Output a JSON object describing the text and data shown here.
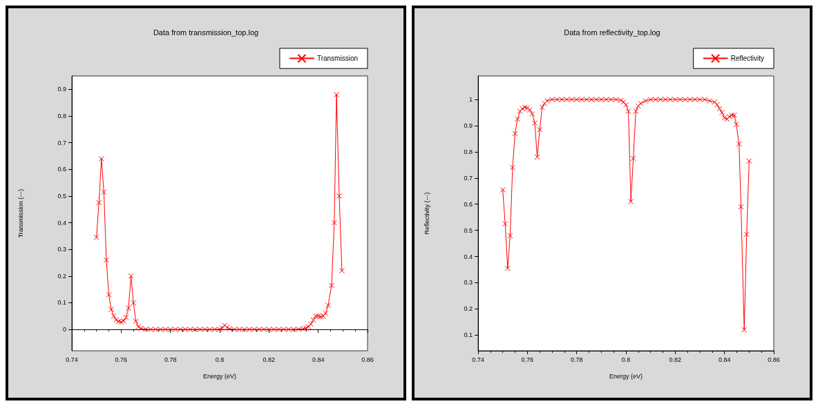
{
  "chart_data": [
    {
      "type": "line",
      "title": "Data from transmission_top.log",
      "xlabel": "Energy (eV)",
      "ylabel": "Transmission (---)",
      "xlim": [
        0.74,
        0.86
      ],
      "xticks": [
        0.74,
        0.76,
        0.78,
        0.8,
        0.82,
        0.84,
        0.86
      ],
      "ylim": [
        -0.08,
        0.95
      ],
      "yticks": [
        0,
        0.1,
        0.2,
        0.3,
        0.4,
        0.5,
        0.6,
        0.7,
        0.8,
        0.9
      ],
      "legend": "top right",
      "marker": "cross",
      "line_style": "solid",
      "x": [
        0.75,
        0.751,
        0.752,
        0.753,
        0.754,
        0.755,
        0.756,
        0.757,
        0.758,
        0.759,
        0.76,
        0.761,
        0.762,
        0.763,
        0.764,
        0.765,
        0.766,
        0.767,
        0.768,
        0.77,
        0.772,
        0.774,
        0.776,
        0.778,
        0.78,
        0.782,
        0.784,
        0.786,
        0.788,
        0.79,
        0.792,
        0.794,
        0.796,
        0.798,
        0.8,
        0.801,
        0.802,
        0.803,
        0.804,
        0.806,
        0.808,
        0.81,
        0.812,
        0.814,
        0.816,
        0.818,
        0.82,
        0.822,
        0.824,
        0.826,
        0.828,
        0.83,
        0.832,
        0.834,
        0.835,
        0.836,
        0.837,
        0.838,
        0.839,
        0.84,
        0.841,
        0.842,
        0.843,
        0.844,
        0.8454,
        0.8465,
        0.8474,
        0.8485,
        0.8496
      ],
      "series": [
        {
          "name": "Transmission",
          "color": "#ff0000",
          "values": [
            0.345,
            0.475,
            0.64,
            0.515,
            0.26,
            0.13,
            0.075,
            0.05,
            0.035,
            0.03,
            0.028,
            0.032,
            0.045,
            0.08,
            0.2,
            0.1,
            0.03,
            0.01,
            0.004,
            0.001,
            0,
            0,
            0,
            0,
            0,
            0,
            0,
            0,
            0,
            0,
            0,
            0,
            0,
            0,
            0.001,
            0.005,
            0.015,
            0.007,
            0.002,
            0,
            0,
            0,
            0,
            0,
            0,
            0,
            0,
            0,
            0,
            0,
            0,
            0,
            0.001,
            0.003,
            0.005,
            0.01,
            0.02,
            0.035,
            0.05,
            0.05,
            0.048,
            0.05,
            0.06,
            0.09,
            0.165,
            0.4,
            0.88,
            0.5,
            0.22
          ]
        }
      ]
    },
    {
      "type": "line",
      "title": "Data from reflectivity_top.log",
      "xlabel": "Energy (eV)",
      "ylabel": "Reflectivity (---)",
      "xlim": [
        0.74,
        0.86
      ],
      "xticks": [
        0.74,
        0.76,
        0.78,
        0.8,
        0.82,
        0.84,
        0.86
      ],
      "ylim": [
        0.04,
        1.09
      ],
      "yticks": [
        0.1,
        0.2,
        0.3,
        0.4,
        0.5,
        0.6,
        0.7,
        0.8,
        0.9,
        1
      ],
      "legend": "top right",
      "marker": "cross",
      "line_style": "solid",
      "x": [
        0.75,
        0.751,
        0.752,
        0.753,
        0.754,
        0.755,
        0.756,
        0.757,
        0.758,
        0.759,
        0.76,
        0.761,
        0.762,
        0.763,
        0.764,
        0.765,
        0.766,
        0.767,
        0.768,
        0.77,
        0.772,
        0.774,
        0.776,
        0.778,
        0.78,
        0.782,
        0.784,
        0.786,
        0.788,
        0.79,
        0.792,
        0.794,
        0.796,
        0.798,
        0.799,
        0.8,
        0.801,
        0.802,
        0.803,
        0.804,
        0.805,
        0.806,
        0.808,
        0.81,
        0.812,
        0.814,
        0.816,
        0.818,
        0.82,
        0.822,
        0.824,
        0.826,
        0.828,
        0.83,
        0.832,
        0.834,
        0.836,
        0.837,
        0.838,
        0.839,
        0.84,
        0.841,
        0.842,
        0.843,
        0.844,
        0.8448,
        0.8459,
        0.8467,
        0.848,
        0.849,
        0.85
      ],
      "series": [
        {
          "name": "Reflectivity",
          "color": "#ff0000",
          "values": [
            0.655,
            0.525,
            0.355,
            0.48,
            0.74,
            0.87,
            0.925,
            0.955,
            0.965,
            0.97,
            0.968,
            0.96,
            0.945,
            0.91,
            0.78,
            0.885,
            0.97,
            0.985,
            0.995,
            1.0,
            1.0,
            1.0,
            1.0,
            1.0,
            1.0,
            1.0,
            1.0,
            1.0,
            1.0,
            1.0,
            1.0,
            1.0,
            1.0,
            0.997,
            0.99,
            0.98,
            0.955,
            0.61,
            0.775,
            0.955,
            0.975,
            0.985,
            0.995,
            1.0,
            1.0,
            1.0,
            1.0,
            1.0,
            1.0,
            1.0,
            1.0,
            1.0,
            1.0,
            1.0,
            1.0,
            0.995,
            0.99,
            0.98,
            0.965,
            0.95,
            0.93,
            0.925,
            0.935,
            0.94,
            0.94,
            0.905,
            0.83,
            0.59,
            0.12,
            0.485,
            0.765
          ]
        }
      ]
    }
  ]
}
